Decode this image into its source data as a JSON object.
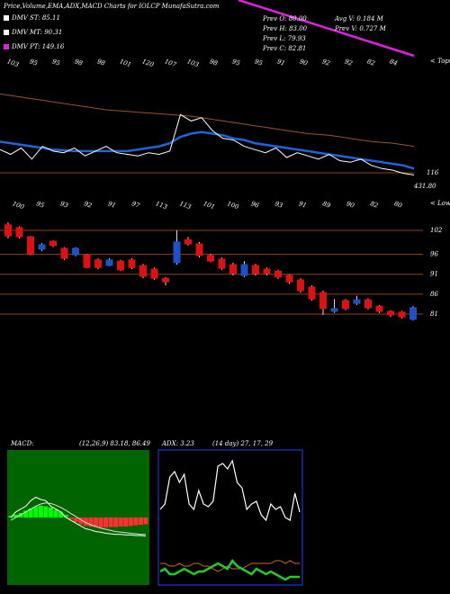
{
  "title": "Price,Volume,EMA,ADX,MACD Charts for IOLCP MunafaSutra.com",
  "legend": [
    "DMV ST: 85.11",
    "DMV MT: 90.31",
    "DMV PT: 149.16"
  ],
  "info": [
    "Prev O: 80.00",
    "Avg V: 0.184  M",
    "Prev H: 83.00",
    "Prev V: 0.727  M",
    "Prev L: 79.93",
    "Prev C: 82.81"
  ],
  "chart_data": [
    {
      "type": "line",
      "ylim": [
        76,
        140
      ],
      "tops": [
        "103",
        "95",
        "95",
        "98",
        "98",
        "101",
        "120",
        "107",
        "103",
        "98",
        "95",
        "95",
        "91",
        "90",
        "92",
        "92",
        "82",
        "84"
      ],
      "tops_label": "< Tops",
      "lows": [
        "100",
        "95",
        "93",
        "92",
        "91",
        "97",
        "113",
        "113",
        "101",
        "100",
        "96",
        "93",
        "91",
        "89",
        "90",
        "82",
        "80"
      ],
      "lows_label": "< Lows",
      "right_labels": [
        "116",
        "431.80"
      ],
      "series": [
        {
          "color": "#a0522d",
          "width": 1,
          "values": [
            133,
            132,
            131,
            130,
            129,
            128,
            127,
            126,
            125,
            124,
            123,
            122.5,
            122,
            121.5,
            121,
            120.5,
            120,
            119.5,
            119,
            118,
            117,
            116,
            115,
            114,
            113,
            112,
            111,
            110,
            109,
            108,
            107.5,
            107,
            106,
            105,
            104,
            103,
            102.5,
            102,
            101,
            100
          ]
        },
        {
          "color": "#1e64dc",
          "width": 2.5,
          "values": [
            103,
            102,
            101,
            100,
            99,
            98,
            97.5,
            97,
            97,
            97,
            97,
            97,
            97,
            98,
            99,
            100,
            102,
            106,
            108,
            109,
            108,
            107,
            105,
            104,
            102,
            101,
            100,
            99,
            98,
            97,
            96,
            95,
            94,
            93,
            92,
            91,
            90,
            89,
            88,
            86
          ]
        },
        {
          "color": "#ffffff",
          "width": 1,
          "values": [
            98,
            95,
            99,
            92,
            100,
            97,
            96,
            99,
            94,
            97,
            100,
            96,
            95,
            94,
            96,
            95,
            97,
            120,
            116,
            118,
            110,
            105,
            104,
            100,
            98,
            96,
            99,
            93,
            96,
            94,
            92,
            95,
            91,
            90,
            92,
            88,
            86,
            85,
            83,
            82
          ]
        }
      ]
    },
    {
      "type": "candlestick",
      "ylim": [
        79,
        105
      ],
      "yticks": [
        102,
        96,
        91,
        86,
        81
      ],
      "up_color": "#1e50c8",
      "down_color": "#dd1111",
      "grid_color": "#8b4513",
      "open": [
        103.4,
        102.7,
        100.4,
        97.3,
        99.3,
        97.5,
        95.9,
        95.9,
        94.6,
        93.2,
        94.3,
        94.6,
        93.2,
        92.3,
        90.0,
        93.9,
        99.7,
        98.6,
        95.7,
        94.8,
        93.4,
        90.7,
        93.2,
        92.3,
        91.8,
        90.7,
        89.6,
        87.8,
        86.4,
        81.7,
        84.4,
        83.7,
        84.6,
        83.0,
        81.7,
        81.5,
        79.7
      ],
      "high": [
        104.0,
        103.0,
        100.6,
        98.8,
        99.5,
        97.8,
        97.8,
        96.1,
        95.0,
        95.0,
        94.6,
        95.0,
        93.6,
        92.7,
        90.3,
        102.0,
        100.4,
        99.1,
        96.1,
        95.2,
        93.9,
        94.3,
        93.6,
        92.7,
        92.1,
        91.0,
        90.0,
        88.2,
        86.9,
        84.8,
        84.8,
        85.6,
        85.0,
        83.3,
        82.0,
        81.8,
        83.0
      ],
      "low": [
        100.0,
        100.0,
        95.8,
        96.8,
        97.8,
        94.6,
        95.5,
        92.5,
        92.3,
        93.0,
        91.8,
        92.3,
        90.0,
        89.6,
        88.2,
        93.4,
        98.2,
        95.2,
        94.0,
        92.1,
        90.7,
        90.3,
        90.7,
        90.7,
        89.8,
        88.6,
        86.4,
        84.4,
        80.8,
        81.3,
        82.0,
        83.3,
        82.2,
        81.3,
        80.3,
        79.9,
        79.4
      ],
      "close": [
        100.6,
        100.4,
        96.1,
        98.4,
        98.2,
        95.0,
        97.5,
        92.7,
        92.7,
        94.6,
        92.1,
        92.7,
        90.5,
        90.0,
        89.1,
        99.1,
        98.6,
        95.7,
        94.3,
        92.5,
        91.2,
        93.4,
        91.2,
        91.2,
        90.3,
        89.1,
        86.9,
        84.8,
        82.4,
        82.4,
        82.4,
        84.6,
        82.6,
        81.7,
        80.8,
        80.3,
        82.6
      ]
    },
    {
      "type": "bar",
      "title": "MACD:",
      "subtitle": "(12,26,9) 83.18, 86.49",
      "ylim": [
        -12,
        12
      ],
      "background": "#006400",
      "up_color": "#00ff00",
      "down_color": "#ff3030",
      "values": [
        0.3,
        0.5,
        0.8,
        1.2,
        1.6,
        1.9,
        2.1,
        2.0,
        1.8,
        1.4,
        1.0,
        0.5,
        -0.3,
        -0.8,
        -1.2,
        -1.5,
        -1.6,
        -1.7,
        -1.8,
        -1.8,
        -1.7,
        -1.7,
        -1.6,
        -1.6,
        -1.5,
        -1.4,
        -1.3,
        -1.2
      ],
      "series": [
        {
          "color": "#ffffff",
          "width": 1,
          "values": [
            0,
            1,
            1.5,
            2,
            3,
            3.6,
            3.2,
            3,
            2,
            1.5,
            1,
            0,
            -0.5,
            -1,
            -1.5,
            -2,
            -2.2,
            -2.5,
            -2.6,
            -2.8,
            -2.9,
            -3,
            -3,
            -3.1,
            -3.1,
            -3.2,
            -3.2,
            -3.3
          ]
        },
        {
          "color": "#dddddd",
          "width": 1,
          "values": [
            -0.5,
            0,
            0.5,
            1,
            1.5,
            2,
            2.4,
            2.6,
            2.5,
            2.2,
            1.8,
            1.3,
            0.7,
            0.2,
            -0.4,
            -0.9,
            -1.3,
            -1.6,
            -1.9,
            -2.1,
            -2.3,
            -2.5,
            -2.6,
            -2.7,
            -2.8,
            -2.9,
            -3,
            -3
          ]
        }
      ]
    },
    {
      "type": "line",
      "title": "ADX: 3.23",
      "subtitle": "(14 day) 27, 17, 29",
      "ylim": [
        0,
        50
      ],
      "border": "#2040ff",
      "series": [
        {
          "color": "#ffffff",
          "width": 1.2,
          "values": [
            28,
            30,
            40,
            42,
            38,
            41,
            30,
            28,
            35,
            30,
            29,
            31,
            44,
            45,
            43,
            46,
            38,
            36,
            28,
            30,
            31,
            26,
            24,
            30,
            28,
            29,
            25,
            24,
            34,
            27
          ]
        },
        {
          "color": "#d2691e",
          "width": 1,
          "values": [
            8,
            8,
            7,
            7,
            8,
            7,
            7,
            8,
            8,
            7,
            7,
            6,
            5,
            6,
            7,
            6,
            6,
            6,
            7,
            8,
            8,
            8,
            8,
            8,
            9,
            9,
            8,
            9,
            8,
            8
          ]
        },
        {
          "color": "#22cc22",
          "width": 2.5,
          "values": [
            5,
            6,
            4,
            4,
            5,
            6,
            5,
            4,
            5,
            5,
            6,
            7,
            8,
            7,
            6,
            9,
            7,
            6,
            5,
            4,
            6,
            5,
            4,
            5,
            4,
            3,
            2,
            3,
            3,
            3
          ]
        }
      ]
    }
  ]
}
